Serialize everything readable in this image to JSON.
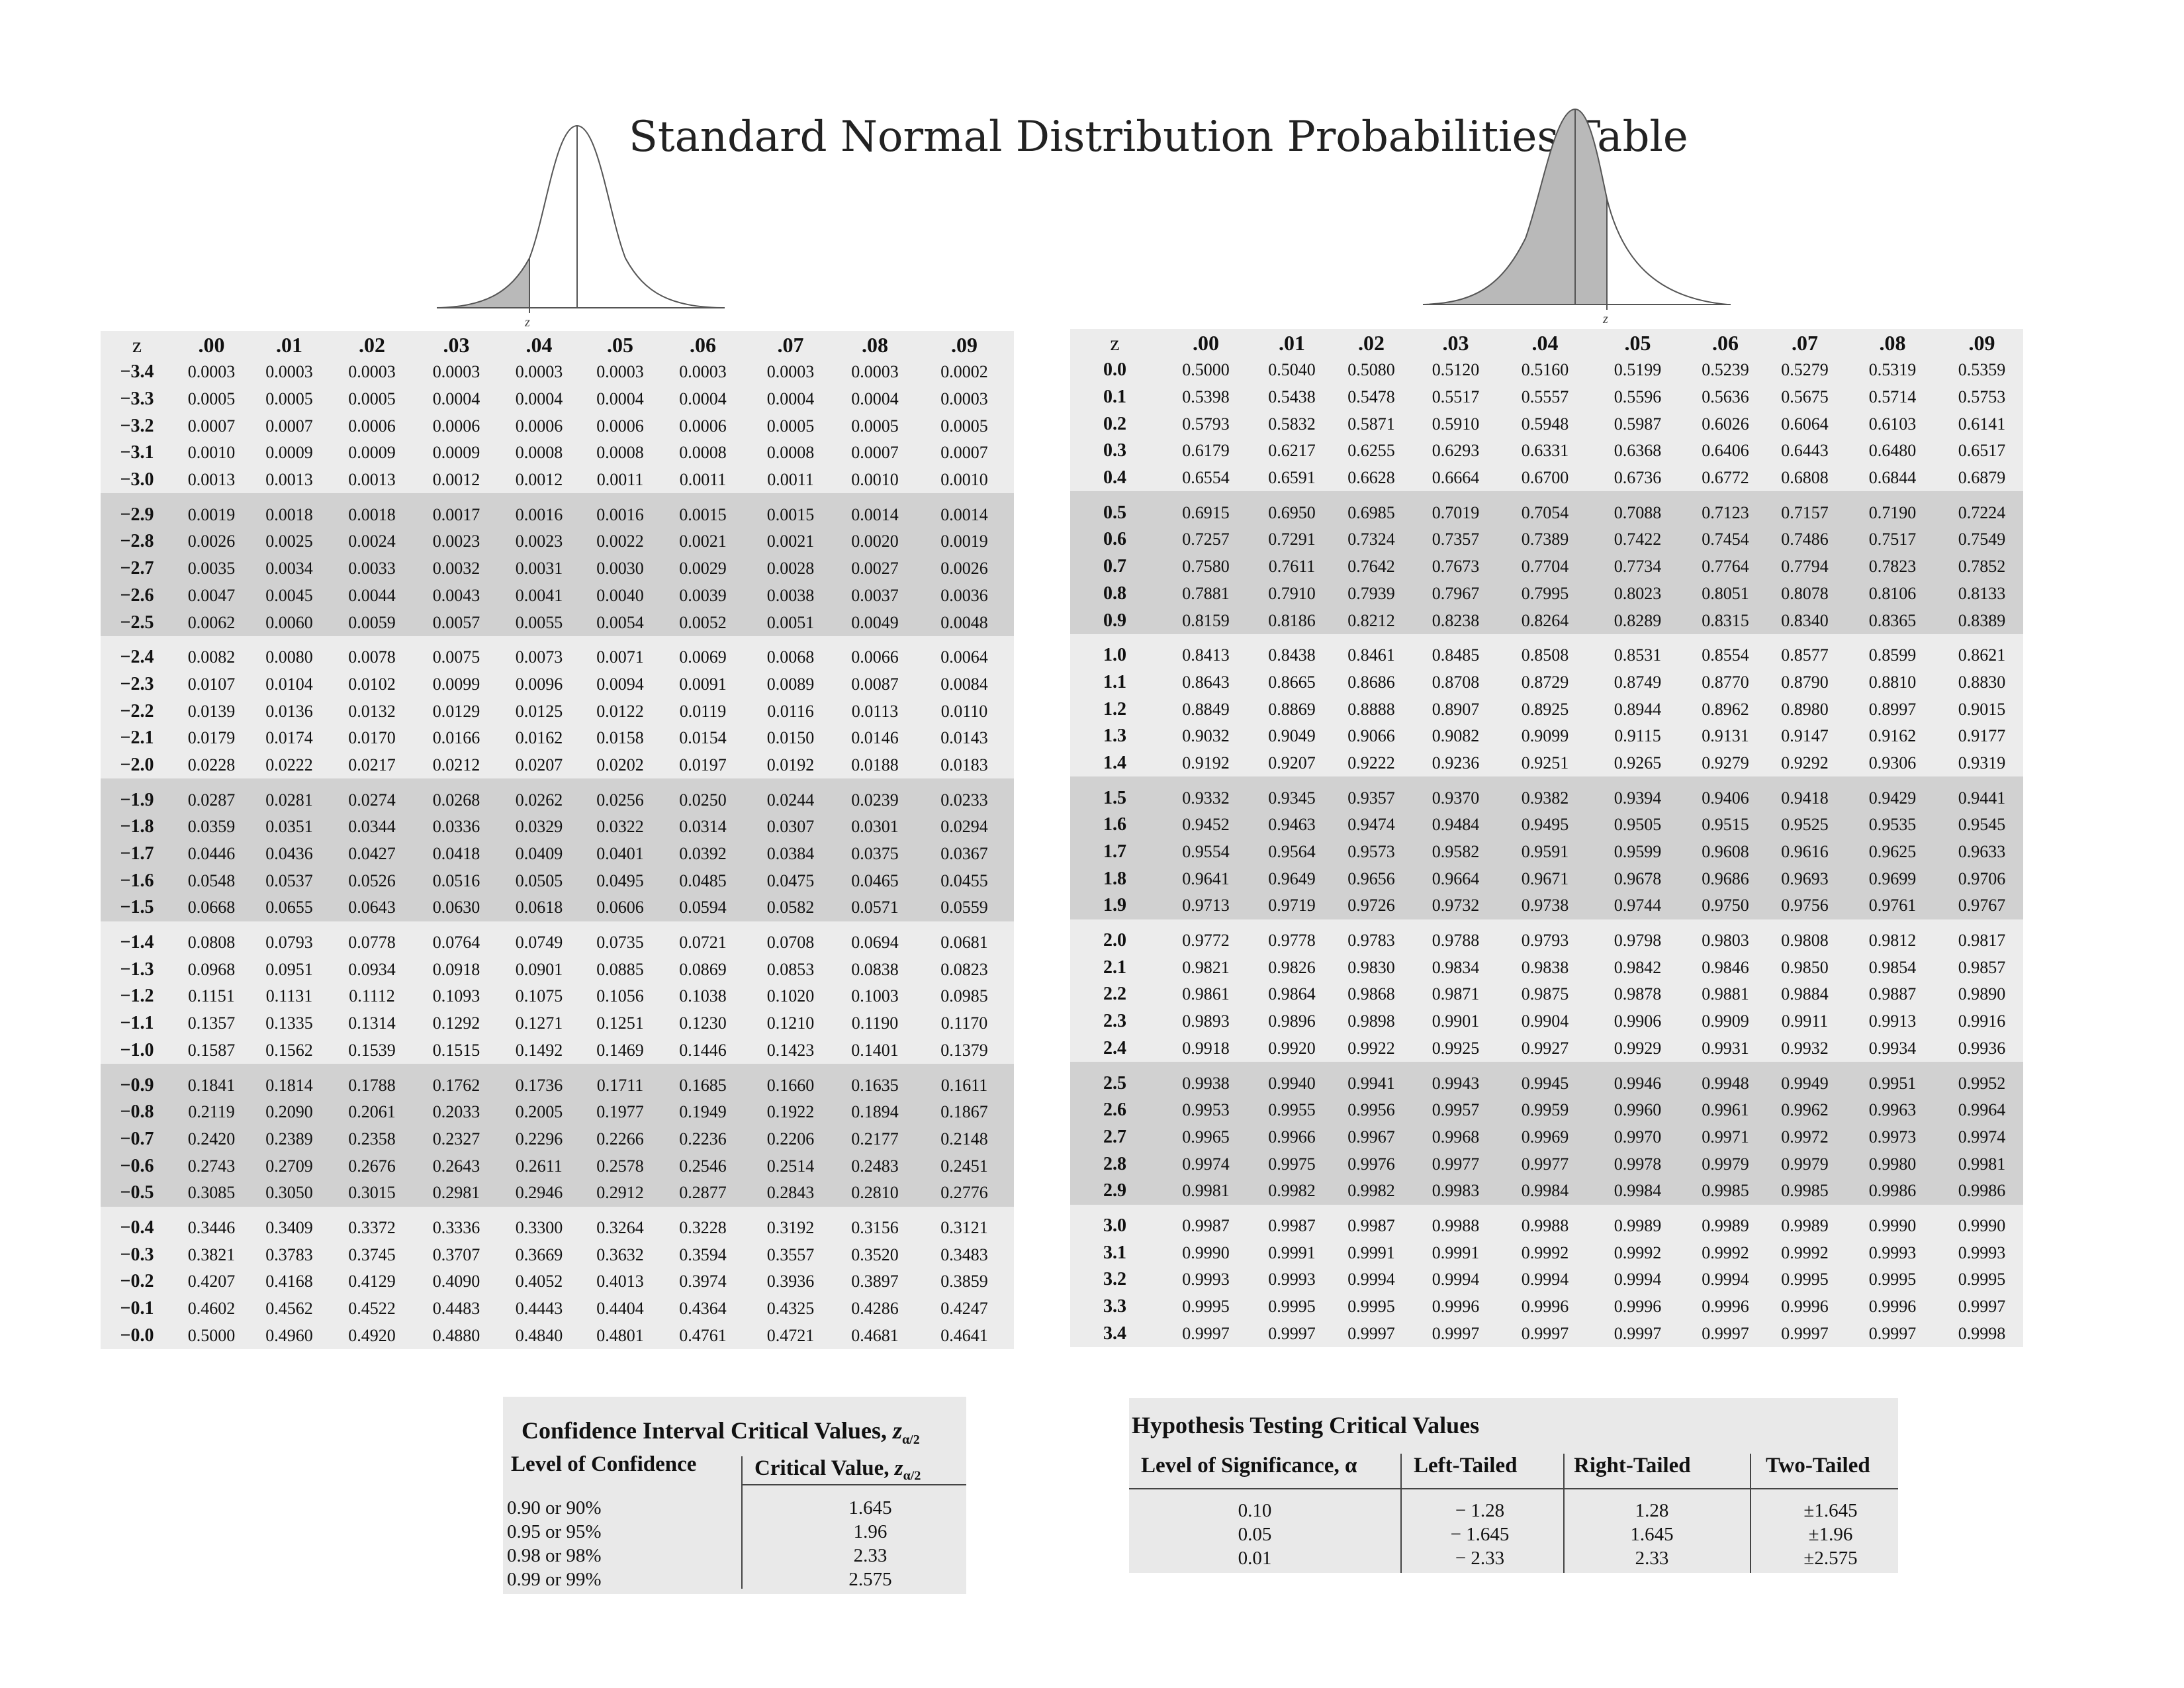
{
  "title": "Standard Normal Distribution Probabilities Table",
  "curves": {
    "left_axis_label": "z",
    "right_axis_label": "z"
  },
  "z_header": "z",
  "columns": [
    ".00",
    ".01",
    ".02",
    ".03",
    ".04",
    ".05",
    ".06",
    ".07",
    ".08",
    ".09"
  ],
  "negative_table": [
    {
      "z": "−3.4",
      "v": [
        "0.0003",
        "0.0003",
        "0.0003",
        "0.0003",
        "0.0003",
        "0.0003",
        "0.0003",
        "0.0003",
        "0.0003",
        "0.0002"
      ]
    },
    {
      "z": "−3.3",
      "v": [
        "0.0005",
        "0.0005",
        "0.0005",
        "0.0004",
        "0.0004",
        "0.0004",
        "0.0004",
        "0.0004",
        "0.0004",
        "0.0003"
      ]
    },
    {
      "z": "−3.2",
      "v": [
        "0.0007",
        "0.0007",
        "0.0006",
        "0.0006",
        "0.0006",
        "0.0006",
        "0.0006",
        "0.0005",
        "0.0005",
        "0.0005"
      ]
    },
    {
      "z": "−3.1",
      "v": [
        "0.0010",
        "0.0009",
        "0.0009",
        "0.0009",
        "0.0008",
        "0.0008",
        "0.0008",
        "0.0008",
        "0.0007",
        "0.0007"
      ]
    },
    {
      "z": "−3.0",
      "v": [
        "0.0013",
        "0.0013",
        "0.0013",
        "0.0012",
        "0.0012",
        "0.0011",
        "0.0011",
        "0.0011",
        "0.0010",
        "0.0010"
      ]
    },
    {
      "z": "−2.9",
      "v": [
        "0.0019",
        "0.0018",
        "0.0018",
        "0.0017",
        "0.0016",
        "0.0016",
        "0.0015",
        "0.0015",
        "0.0014",
        "0.0014"
      ]
    },
    {
      "z": "−2.8",
      "v": [
        "0.0026",
        "0.0025",
        "0.0024",
        "0.0023",
        "0.0023",
        "0.0022",
        "0.0021",
        "0.0021",
        "0.0020",
        "0.0019"
      ]
    },
    {
      "z": "−2.7",
      "v": [
        "0.0035",
        "0.0034",
        "0.0033",
        "0.0032",
        "0.0031",
        "0.0030",
        "0.0029",
        "0.0028",
        "0.0027",
        "0.0026"
      ]
    },
    {
      "z": "−2.6",
      "v": [
        "0.0047",
        "0.0045",
        "0.0044",
        "0.0043",
        "0.0041",
        "0.0040",
        "0.0039",
        "0.0038",
        "0.0037",
        "0.0036"
      ]
    },
    {
      "z": "−2.5",
      "v": [
        "0.0062",
        "0.0060",
        "0.0059",
        "0.0057",
        "0.0055",
        "0.0054",
        "0.0052",
        "0.0051",
        "0.0049",
        "0.0048"
      ]
    },
    {
      "z": "−2.4",
      "v": [
        "0.0082",
        "0.0080",
        "0.0078",
        "0.0075",
        "0.0073",
        "0.0071",
        "0.0069",
        "0.0068",
        "0.0066",
        "0.0064"
      ]
    },
    {
      "z": "−2.3",
      "v": [
        "0.0107",
        "0.0104",
        "0.0102",
        "0.0099",
        "0.0096",
        "0.0094",
        "0.0091",
        "0.0089",
        "0.0087",
        "0.0084"
      ]
    },
    {
      "z": "−2.2",
      "v": [
        "0.0139",
        "0.0136",
        "0.0132",
        "0.0129",
        "0.0125",
        "0.0122",
        "0.0119",
        "0.0116",
        "0.0113",
        "0.0110"
      ]
    },
    {
      "z": "−2.1",
      "v": [
        "0.0179",
        "0.0174",
        "0.0170",
        "0.0166",
        "0.0162",
        "0.0158",
        "0.0154",
        "0.0150",
        "0.0146",
        "0.0143"
      ]
    },
    {
      "z": "−2.0",
      "v": [
        "0.0228",
        "0.0222",
        "0.0217",
        "0.0212",
        "0.0207",
        "0.0202",
        "0.0197",
        "0.0192",
        "0.0188",
        "0.0183"
      ]
    },
    {
      "z": "−1.9",
      "v": [
        "0.0287",
        "0.0281",
        "0.0274",
        "0.0268",
        "0.0262",
        "0.0256",
        "0.0250",
        "0.0244",
        "0.0239",
        "0.0233"
      ]
    },
    {
      "z": "−1.8",
      "v": [
        "0.0359",
        "0.0351",
        "0.0344",
        "0.0336",
        "0.0329",
        "0.0322",
        "0.0314",
        "0.0307",
        "0.0301",
        "0.0294"
      ]
    },
    {
      "z": "−1.7",
      "v": [
        "0.0446",
        "0.0436",
        "0.0427",
        "0.0418",
        "0.0409",
        "0.0401",
        "0.0392",
        "0.0384",
        "0.0375",
        "0.0367"
      ]
    },
    {
      "z": "−1.6",
      "v": [
        "0.0548",
        "0.0537",
        "0.0526",
        "0.0516",
        "0.0505",
        "0.0495",
        "0.0485",
        "0.0475",
        "0.0465",
        "0.0455"
      ]
    },
    {
      "z": "−1.5",
      "v": [
        "0.0668",
        "0.0655",
        "0.0643",
        "0.0630",
        "0.0618",
        "0.0606",
        "0.0594",
        "0.0582",
        "0.0571",
        "0.0559"
      ]
    },
    {
      "z": "−1.4",
      "v": [
        "0.0808",
        "0.0793",
        "0.0778",
        "0.0764",
        "0.0749",
        "0.0735",
        "0.0721",
        "0.0708",
        "0.0694",
        "0.0681"
      ]
    },
    {
      "z": "−1.3",
      "v": [
        "0.0968",
        "0.0951",
        "0.0934",
        "0.0918",
        "0.0901",
        "0.0885",
        "0.0869",
        "0.0853",
        "0.0838",
        "0.0823"
      ]
    },
    {
      "z": "−1.2",
      "v": [
        "0.1151",
        "0.1131",
        "0.1112",
        "0.1093",
        "0.1075",
        "0.1056",
        "0.1038",
        "0.1020",
        "0.1003",
        "0.0985"
      ]
    },
    {
      "z": "−1.1",
      "v": [
        "0.1357",
        "0.1335",
        "0.1314",
        "0.1292",
        "0.1271",
        "0.1251",
        "0.1230",
        "0.1210",
        "0.1190",
        "0.1170"
      ]
    },
    {
      "z": "−1.0",
      "v": [
        "0.1587",
        "0.1562",
        "0.1539",
        "0.1515",
        "0.1492",
        "0.1469",
        "0.1446",
        "0.1423",
        "0.1401",
        "0.1379"
      ]
    },
    {
      "z": "−0.9",
      "v": [
        "0.1841",
        "0.1814",
        "0.1788",
        "0.1762",
        "0.1736",
        "0.1711",
        "0.1685",
        "0.1660",
        "0.1635",
        "0.1611"
      ]
    },
    {
      "z": "−0.8",
      "v": [
        "0.2119",
        "0.2090",
        "0.2061",
        "0.2033",
        "0.2005",
        "0.1977",
        "0.1949",
        "0.1922",
        "0.1894",
        "0.1867"
      ]
    },
    {
      "z": "−0.7",
      "v": [
        "0.2420",
        "0.2389",
        "0.2358",
        "0.2327",
        "0.2296",
        "0.2266",
        "0.2236",
        "0.2206",
        "0.2177",
        "0.2148"
      ]
    },
    {
      "z": "−0.6",
      "v": [
        "0.2743",
        "0.2709",
        "0.2676",
        "0.2643",
        "0.2611",
        "0.2578",
        "0.2546",
        "0.2514",
        "0.2483",
        "0.2451"
      ]
    },
    {
      "z": "−0.5",
      "v": [
        "0.3085",
        "0.3050",
        "0.3015",
        "0.2981",
        "0.2946",
        "0.2912",
        "0.2877",
        "0.2843",
        "0.2810",
        "0.2776"
      ]
    },
    {
      "z": "−0.4",
      "v": [
        "0.3446",
        "0.3409",
        "0.3372",
        "0.3336",
        "0.3300",
        "0.3264",
        "0.3228",
        "0.3192",
        "0.3156",
        "0.3121"
      ]
    },
    {
      "z": "−0.3",
      "v": [
        "0.3821",
        "0.3783",
        "0.3745",
        "0.3707",
        "0.3669",
        "0.3632",
        "0.3594",
        "0.3557",
        "0.3520",
        "0.3483"
      ]
    },
    {
      "z": "−0.2",
      "v": [
        "0.4207",
        "0.4168",
        "0.4129",
        "0.4090",
        "0.4052",
        "0.4013",
        "0.3974",
        "0.3936",
        "0.3897",
        "0.3859"
      ]
    },
    {
      "z": "−0.1",
      "v": [
        "0.4602",
        "0.4562",
        "0.4522",
        "0.4483",
        "0.4443",
        "0.4404",
        "0.4364",
        "0.4325",
        "0.4286",
        "0.4247"
      ]
    },
    {
      "z": "−0.0",
      "v": [
        "0.5000",
        "0.4960",
        "0.4920",
        "0.4880",
        "0.4840",
        "0.4801",
        "0.4761",
        "0.4721",
        "0.4681",
        "0.4641"
      ]
    }
  ],
  "positive_table": [
    {
      "z": "0.0",
      "v": [
        "0.5000",
        "0.5040",
        "0.5080",
        "0.5120",
        "0.5160",
        "0.5199",
        "0.5239",
        "0.5279",
        "0.5319",
        "0.5359"
      ]
    },
    {
      "z": "0.1",
      "v": [
        "0.5398",
        "0.5438",
        "0.5478",
        "0.5517",
        "0.5557",
        "0.5596",
        "0.5636",
        "0.5675",
        "0.5714",
        "0.5753"
      ]
    },
    {
      "z": "0.2",
      "v": [
        "0.5793",
        "0.5832",
        "0.5871",
        "0.5910",
        "0.5948",
        "0.5987",
        "0.6026",
        "0.6064",
        "0.6103",
        "0.6141"
      ]
    },
    {
      "z": "0.3",
      "v": [
        "0.6179",
        "0.6217",
        "0.6255",
        "0.6293",
        "0.6331",
        "0.6368",
        "0.6406",
        "0.6443",
        "0.6480",
        "0.6517"
      ]
    },
    {
      "z": "0.4",
      "v": [
        "0.6554",
        "0.6591",
        "0.6628",
        "0.6664",
        "0.6700",
        "0.6736",
        "0.6772",
        "0.6808",
        "0.6844",
        "0.6879"
      ]
    },
    {
      "z": "0.5",
      "v": [
        "0.6915",
        "0.6950",
        "0.6985",
        "0.7019",
        "0.7054",
        "0.7088",
        "0.7123",
        "0.7157",
        "0.7190",
        "0.7224"
      ]
    },
    {
      "z": "0.6",
      "v": [
        "0.7257",
        "0.7291",
        "0.7324",
        "0.7357",
        "0.7389",
        "0.7422",
        "0.7454",
        "0.7486",
        "0.7517",
        "0.7549"
      ]
    },
    {
      "z": "0.7",
      "v": [
        "0.7580",
        "0.7611",
        "0.7642",
        "0.7673",
        "0.7704",
        "0.7734",
        "0.7764",
        "0.7794",
        "0.7823",
        "0.7852"
      ]
    },
    {
      "z": "0.8",
      "v": [
        "0.7881",
        "0.7910",
        "0.7939",
        "0.7967",
        "0.7995",
        "0.8023",
        "0.8051",
        "0.8078",
        "0.8106",
        "0.8133"
      ]
    },
    {
      "z": "0.9",
      "v": [
        "0.8159",
        "0.8186",
        "0.8212",
        "0.8238",
        "0.8264",
        "0.8289",
        "0.8315",
        "0.8340",
        "0.8365",
        "0.8389"
      ]
    },
    {
      "z": "1.0",
      "v": [
        "0.8413",
        "0.8438",
        "0.8461",
        "0.8485",
        "0.8508",
        "0.8531",
        "0.8554",
        "0.8577",
        "0.8599",
        "0.8621"
      ]
    },
    {
      "z": "1.1",
      "v": [
        "0.8643",
        "0.8665",
        "0.8686",
        "0.8708",
        "0.8729",
        "0.8749",
        "0.8770",
        "0.8790",
        "0.8810",
        "0.8830"
      ]
    },
    {
      "z": "1.2",
      "v": [
        "0.8849",
        "0.8869",
        "0.8888",
        "0.8907",
        "0.8925",
        "0.8944",
        "0.8962",
        "0.8980",
        "0.8997",
        "0.9015"
      ]
    },
    {
      "z": "1.3",
      "v": [
        "0.9032",
        "0.9049",
        "0.9066",
        "0.9082",
        "0.9099",
        "0.9115",
        "0.9131",
        "0.9147",
        "0.9162",
        "0.9177"
      ]
    },
    {
      "z": "1.4",
      "v": [
        "0.9192",
        "0.9207",
        "0.9222",
        "0.9236",
        "0.9251",
        "0.9265",
        "0.9279",
        "0.9292",
        "0.9306",
        "0.9319"
      ]
    },
    {
      "z": "1.5",
      "v": [
        "0.9332",
        "0.9345",
        "0.9357",
        "0.9370",
        "0.9382",
        "0.9394",
        "0.9406",
        "0.9418",
        "0.9429",
        "0.9441"
      ]
    },
    {
      "z": "1.6",
      "v": [
        "0.9452",
        "0.9463",
        "0.9474",
        "0.9484",
        "0.9495",
        "0.9505",
        "0.9515",
        "0.9525",
        "0.9535",
        "0.9545"
      ]
    },
    {
      "z": "1.7",
      "v": [
        "0.9554",
        "0.9564",
        "0.9573",
        "0.9582",
        "0.9591",
        "0.9599",
        "0.9608",
        "0.9616",
        "0.9625",
        "0.9633"
      ]
    },
    {
      "z": "1.8",
      "v": [
        "0.9641",
        "0.9649",
        "0.9656",
        "0.9664",
        "0.9671",
        "0.9678",
        "0.9686",
        "0.9693",
        "0.9699",
        "0.9706"
      ]
    },
    {
      "z": "1.9",
      "v": [
        "0.9713",
        "0.9719",
        "0.9726",
        "0.9732",
        "0.9738",
        "0.9744",
        "0.9750",
        "0.9756",
        "0.9761",
        "0.9767"
      ]
    },
    {
      "z": "2.0",
      "v": [
        "0.9772",
        "0.9778",
        "0.9783",
        "0.9788",
        "0.9793",
        "0.9798",
        "0.9803",
        "0.9808",
        "0.9812",
        "0.9817"
      ]
    },
    {
      "z": "2.1",
      "v": [
        "0.9821",
        "0.9826",
        "0.9830",
        "0.9834",
        "0.9838",
        "0.9842",
        "0.9846",
        "0.9850",
        "0.9854",
        "0.9857"
      ]
    },
    {
      "z": "2.2",
      "v": [
        "0.9861",
        "0.9864",
        "0.9868",
        "0.9871",
        "0.9875",
        "0.9878",
        "0.9881",
        "0.9884",
        "0.9887",
        "0.9890"
      ]
    },
    {
      "z": "2.3",
      "v": [
        "0.9893",
        "0.9896",
        "0.9898",
        "0.9901",
        "0.9904",
        "0.9906",
        "0.9909",
        "0.9911",
        "0.9913",
        "0.9916"
      ]
    },
    {
      "z": "2.4",
      "v": [
        "0.9918",
        "0.9920",
        "0.9922",
        "0.9925",
        "0.9927",
        "0.9929",
        "0.9931",
        "0.9932",
        "0.9934",
        "0.9936"
      ]
    },
    {
      "z": "2.5",
      "v": [
        "0.9938",
        "0.9940",
        "0.9941",
        "0.9943",
        "0.9945",
        "0.9946",
        "0.9948",
        "0.9949",
        "0.9951",
        "0.9952"
      ]
    },
    {
      "z": "2.6",
      "v": [
        "0.9953",
        "0.9955",
        "0.9956",
        "0.9957",
        "0.9959",
        "0.9960",
        "0.9961",
        "0.9962",
        "0.9963",
        "0.9964"
      ]
    },
    {
      "z": "2.7",
      "v": [
        "0.9965",
        "0.9966",
        "0.9967",
        "0.9968",
        "0.9969",
        "0.9970",
        "0.9971",
        "0.9972",
        "0.9973",
        "0.9974"
      ]
    },
    {
      "z": "2.8",
      "v": [
        "0.9974",
        "0.9975",
        "0.9976",
        "0.9977",
        "0.9977",
        "0.9978",
        "0.9979",
        "0.9979",
        "0.9980",
        "0.9981"
      ]
    },
    {
      "z": "2.9",
      "v": [
        "0.9981",
        "0.9982",
        "0.9982",
        "0.9983",
        "0.9984",
        "0.9984",
        "0.9985",
        "0.9985",
        "0.9986",
        "0.9986"
      ]
    },
    {
      "z": "3.0",
      "v": [
        "0.9987",
        "0.9987",
        "0.9987",
        "0.9988",
        "0.9988",
        "0.9989",
        "0.9989",
        "0.9989",
        "0.9990",
        "0.9990"
      ]
    },
    {
      "z": "3.1",
      "v": [
        "0.9990",
        "0.9991",
        "0.9991",
        "0.9991",
        "0.9992",
        "0.9992",
        "0.9992",
        "0.9992",
        "0.9993",
        "0.9993"
      ]
    },
    {
      "z": "3.2",
      "v": [
        "0.9993",
        "0.9993",
        "0.9994",
        "0.9994",
        "0.9994",
        "0.9994",
        "0.9994",
        "0.9995",
        "0.9995",
        "0.9995"
      ]
    },
    {
      "z": "3.3",
      "v": [
        "0.9995",
        "0.9995",
        "0.9995",
        "0.9996",
        "0.9996",
        "0.9996",
        "0.9996",
        "0.9996",
        "0.9996",
        "0.9997"
      ]
    },
    {
      "z": "3.4",
      "v": [
        "0.9997",
        "0.9997",
        "0.9997",
        "0.9997",
        "0.9997",
        "0.9997",
        "0.9997",
        "0.9997",
        "0.9997",
        "0.9998"
      ]
    }
  ],
  "confidence": {
    "title": "Confidence Interval Critical Values, ",
    "title_z": "z",
    "title_sub": "α/2",
    "col1": "Level of Confidence",
    "col2": "Critical Value, ",
    "col2_z": "z",
    "col2_sub": "α/2",
    "rows": [
      {
        "level": "0.90 or 90%",
        "value": "1.645"
      },
      {
        "level": "0.95 or 95%",
        "value": "1.96"
      },
      {
        "level": "0.98 or 98%",
        "value": "2.33"
      },
      {
        "level": "0.99 or 99%",
        "value": "2.575"
      }
    ]
  },
  "hypothesis": {
    "title": "Hypothesis Testing Critical Values",
    "headers": [
      "Level of Significance, α",
      "Left-Tailed",
      "Right-Tailed",
      "Two-Tailed"
    ],
    "significance": [
      "0.10",
      "0.05",
      "0.01"
    ],
    "left": [
      "− 1.28",
      "− 1.645",
      "− 2.33"
    ],
    "right": [
      "1.28",
      "1.645",
      "2.33"
    ],
    "two": [
      "±1.645",
      "±1.96",
      "±2.575"
    ]
  }
}
